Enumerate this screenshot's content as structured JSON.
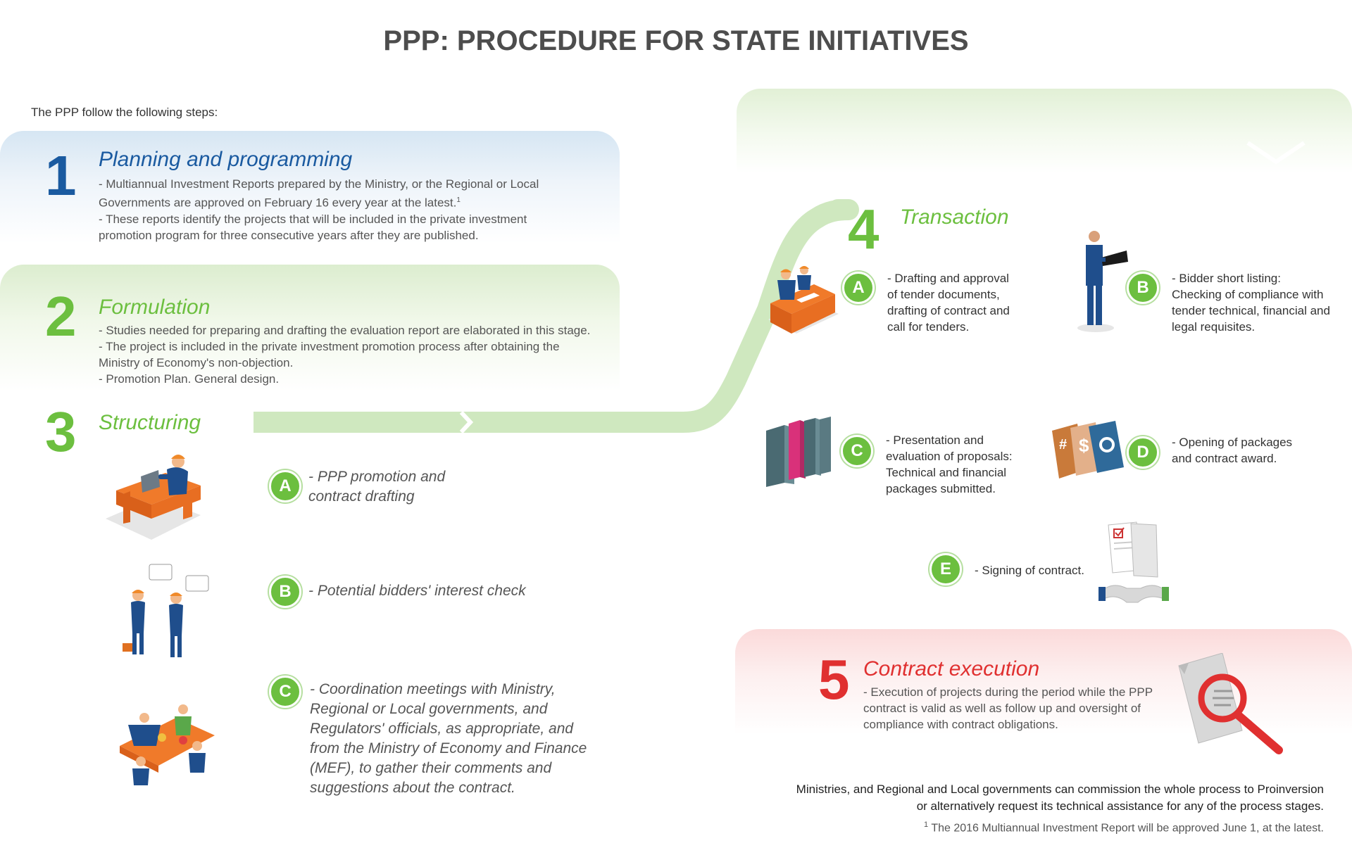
{
  "title": "PPP: PROCEDURE FOR STATE INITIATIVES",
  "intro": "The PPP follow the following steps:",
  "steps": {
    "s1": {
      "number": "1",
      "title": "Planning and programming",
      "lines": [
        "- Multiannual Investment Reports prepared by the Ministry, or the Regional or Local",
        "Governments are approved on February 16 every year at the latest.",
        "- These reports identify the projects that will be included in the private investment",
        "promotion program for three consecutive years after they are published."
      ],
      "footnote_mark": "1"
    },
    "s2": {
      "number": "2",
      "title": "Formulation",
      "lines": [
        "- Studies needed for preparing and drafting the evaluation report are elaborated in this stage.",
        "- The project is included in the private investment promotion process after obtaining the",
        "Ministry of Economy's non-objection.",
        "- Promotion Plan. General design."
      ]
    },
    "s3": {
      "number": "3",
      "title": "Structuring",
      "items": {
        "a": {
          "letter": "A",
          "lines": [
            "- PPP promotion and",
            "contract drafting"
          ]
        },
        "b": {
          "letter": "B",
          "lines": [
            "- Potential bidders' interest check"
          ]
        },
        "c": {
          "letter": "C",
          "lines": [
            "-  Coordination meetings with Ministry,",
            "Regional or Local governments, and",
            "Regulators' officials, as appropriate, and",
            "from the Ministry of Economy and Finance",
            "(MEF), to gather their comments and",
            "suggestions about the contract."
          ]
        }
      }
    },
    "s4": {
      "number": "4",
      "title": "Transaction",
      "items": {
        "a": {
          "letter": "A",
          "lines": [
            "- Drafting and approval",
            "of tender documents,",
            "drafting of contract and",
            "call for tenders."
          ]
        },
        "b": {
          "letter": "B",
          "lines": [
            "- Bidder short listing:",
            "Checking of compliance with",
            "tender technical, financial and",
            "legal requisites."
          ]
        },
        "c": {
          "letter": "C",
          "lines": [
            "- Presentation and",
            "evaluation of proposals:",
            "Technical and financial",
            "packages submitted."
          ]
        },
        "d": {
          "letter": "D",
          "lines": [
            "- Opening of packages",
            "and contract award."
          ]
        },
        "e": {
          "letter": "E",
          "lines": [
            "- Signing of contract."
          ]
        }
      }
    },
    "s5": {
      "number": "5",
      "title": "Contract execution",
      "lines": [
        "- Execution of projects during the period while the PPP",
        "contract is valid as well as follow up and oversight of",
        "compliance with contract obligations."
      ]
    }
  },
  "note": {
    "line1": "Ministries, and Regional and Local governments can commission the whole process to Proinversion",
    "line2": "or alternatively request its technical assistance for any of the process stages."
  },
  "footnote": {
    "mark": "1",
    "text": " The 2016 Multiannual Investment Report will be approved June 1, at the latest."
  },
  "colors": {
    "blue": "#1a5aa0",
    "green": "#6cbf3f",
    "red": "#e03030",
    "arrow": "#cfe8bf"
  },
  "icons": [
    "worker-at-desk-icon",
    "bidders-talking-icon",
    "meeting-table-icon",
    "engineers-desk-icon",
    "man-reading-document-icon",
    "binders-icon",
    "packages-icon",
    "contract-handshake-icon",
    "magnifier-document-icon"
  ]
}
